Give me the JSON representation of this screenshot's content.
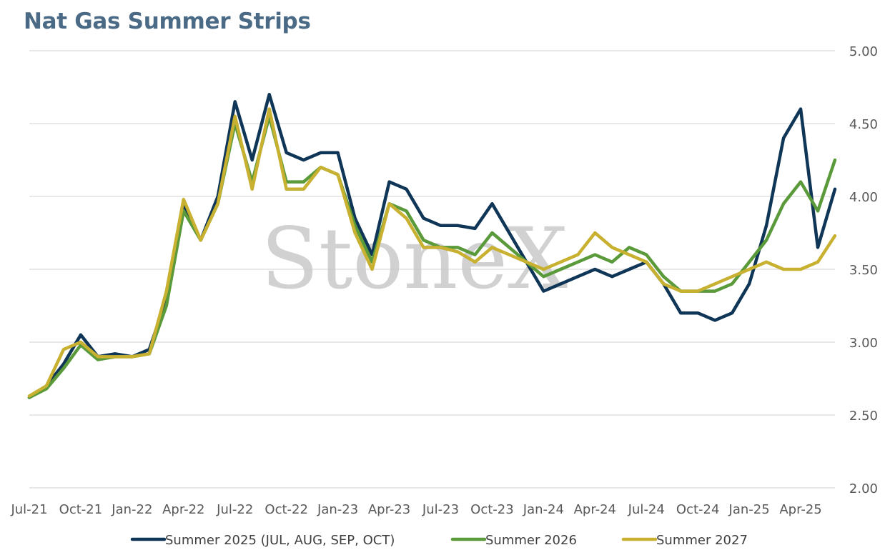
{
  "title": "Nat Gas Summer Strips",
  "watermark": "StoneX",
  "chart_data": {
    "type": "line",
    "title": "Nat Gas Summer Strips",
    "xlabel": "",
    "ylabel": "",
    "ylim": [
      2.0,
      5.0
    ],
    "yticks": [
      "2.00",
      "2.50",
      "3.00",
      "3.50",
      "4.00",
      "4.50",
      "5.00"
    ],
    "xticks": [
      "Jul-21",
      "Oct-21",
      "Jan-22",
      "Apr-22",
      "Jul-22",
      "Oct-22",
      "Jan-23",
      "Apr-23",
      "Jul-23",
      "Oct-23",
      "Jan-24",
      "Apr-24",
      "Jul-24",
      "Oct-24",
      "Jan-25",
      "Apr-25"
    ],
    "grid": true,
    "legend_position": "bottom",
    "x": [
      "Jul-21",
      "Aug-21",
      "Sep-21",
      "Oct-21",
      "Nov-21",
      "Dec-21",
      "Jan-22",
      "Feb-22",
      "Mar-22",
      "Apr-22",
      "May-22",
      "Jun-22",
      "Jul-22",
      "Aug-22",
      "Sep-22",
      "Oct-22",
      "Nov-22",
      "Dec-22",
      "Jan-23",
      "Feb-23",
      "Mar-23",
      "Apr-23",
      "May-23",
      "Jun-23",
      "Jul-23",
      "Aug-23",
      "Sep-23",
      "Oct-23",
      "Nov-23",
      "Dec-23",
      "Jan-24",
      "Feb-24",
      "Mar-24",
      "Apr-24",
      "May-24",
      "Jun-24",
      "Jul-24",
      "Aug-24",
      "Sep-24",
      "Oct-24",
      "Nov-24",
      "Dec-24",
      "Jan-25",
      "Feb-25",
      "Mar-25",
      "Apr-25",
      "May-25",
      "Jun-25"
    ],
    "series": [
      {
        "name": "Summer 2025 (JUL, AUG, SEP, OCT)",
        "color": "#0f3557",
        "values": [
          2.62,
          2.7,
          2.85,
          3.05,
          2.9,
          2.92,
          2.9,
          2.95,
          3.3,
          3.95,
          3.7,
          4.0,
          4.65,
          4.25,
          4.7,
          4.3,
          4.25,
          4.3,
          4.3,
          3.85,
          3.6,
          4.1,
          4.05,
          3.85,
          3.8,
          3.8,
          3.78,
          3.95,
          3.75,
          3.55,
          3.35,
          3.4,
          3.45,
          3.5,
          3.45,
          3.5,
          3.55,
          3.4,
          3.2,
          3.2,
          3.15,
          3.2,
          3.4,
          3.8,
          4.4,
          4.6,
          3.65,
          4.05
        ]
      },
      {
        "name": "Summer 2026",
        "color": "#5a9a3a",
        "values": [
          2.62,
          2.68,
          2.82,
          2.98,
          2.88,
          2.9,
          2.9,
          2.92,
          3.25,
          3.9,
          3.7,
          3.95,
          4.5,
          4.1,
          4.55,
          4.1,
          4.1,
          4.2,
          4.15,
          3.8,
          3.55,
          3.95,
          3.9,
          3.7,
          3.65,
          3.65,
          3.6,
          3.75,
          3.65,
          3.55,
          3.45,
          3.5,
          3.55,
          3.6,
          3.55,
          3.65,
          3.6,
          3.45,
          3.35,
          3.35,
          3.35,
          3.4,
          3.55,
          3.7,
          3.95,
          4.1,
          3.9,
          4.25
        ]
      },
      {
        "name": "Summer 2027",
        "color": "#c8b030",
        "values": [
          2.63,
          2.7,
          2.95,
          3.0,
          2.9,
          2.9,
          2.9,
          2.92,
          3.35,
          3.98,
          3.7,
          3.95,
          4.55,
          4.05,
          4.6,
          4.05,
          4.05,
          4.2,
          4.15,
          3.75,
          3.5,
          3.95,
          3.85,
          3.65,
          3.65,
          3.62,
          3.55,
          3.65,
          3.6,
          3.55,
          3.5,
          3.55,
          3.6,
          3.75,
          3.65,
          3.6,
          3.55,
          3.4,
          3.35,
          3.35,
          3.4,
          3.45,
          3.5,
          3.55,
          3.5,
          3.5,
          3.55,
          3.73
        ]
      }
    ]
  }
}
